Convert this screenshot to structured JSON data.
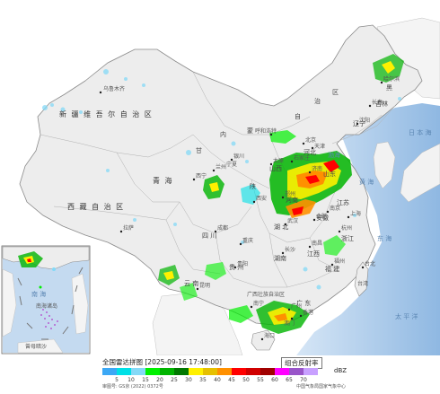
{
  "map": {
    "regions": [
      {
        "key": "xinjiang",
        "text": "新 疆 维 吾 尔 自 治 区"
      },
      {
        "key": "xizang",
        "text": "西 藏 自 治 区"
      },
      {
        "key": "qinghai",
        "text": "青  海"
      },
      {
        "key": "neimenggu_1",
        "text": "内"
      },
      {
        "key": "neimenggu_2",
        "text": "蒙"
      },
      {
        "key": "neimenggu_3",
        "text": "自"
      },
      {
        "key": "neimenggu_4",
        "text": "治"
      },
      {
        "key": "neimenggu_5",
        "text": "区"
      },
      {
        "key": "gansu",
        "text": "甘"
      },
      {
        "key": "heilongjiang",
        "text": "黑"
      },
      {
        "key": "jilin",
        "text": "吉林"
      },
      {
        "key": "liaoning",
        "text": "辽宁"
      },
      {
        "key": "shaanxi",
        "text": "陕"
      },
      {
        "key": "sichuan",
        "text": "四  川"
      },
      {
        "key": "hubei",
        "text": "湖  北"
      },
      {
        "key": "guizhou",
        "text": "贵  州"
      },
      {
        "key": "yunnan",
        "text": "云  南"
      },
      {
        "key": "guangxi",
        "text": "广西壮族自治区"
      },
      {
        "key": "guangdong",
        "text": "广 东"
      },
      {
        "key": "jiangxi",
        "text": "江西"
      },
      {
        "key": "zhejiang",
        "text": "浙江"
      },
      {
        "key": "fujian",
        "text": "福 建"
      },
      {
        "key": "taiwan",
        "text": "台湾"
      },
      {
        "key": "anhui",
        "text": "安徽"
      },
      {
        "key": "jiangsu",
        "text": "江苏"
      },
      {
        "key": "henan",
        "text": "河南"
      },
      {
        "key": "hebei",
        "text": "河北"
      },
      {
        "key": "shanxi",
        "text": "山西"
      },
      {
        "key": "shandong",
        "text": "山东"
      },
      {
        "key": "ningxia",
        "text": "宁夏"
      },
      {
        "key": "hunan",
        "text": "湖南"
      }
    ],
    "cities": [
      {
        "key": "urumqi",
        "text": "乌鲁木齐"
      },
      {
        "key": "xining",
        "text": "西宁"
      },
      {
        "key": "lanzhou",
        "text": "兰州"
      },
      {
        "key": "lhasa",
        "text": "拉萨"
      },
      {
        "key": "chengdu",
        "text": "成都"
      },
      {
        "key": "chongqing",
        "text": "重庆"
      },
      {
        "key": "guiyang",
        "text": "贵阳"
      },
      {
        "key": "kunming",
        "text": "昆明"
      },
      {
        "key": "nanning",
        "text": "南宁"
      },
      {
        "key": "guangzhou",
        "text": "广州"
      },
      {
        "key": "haikou",
        "text": "海口"
      },
      {
        "key": "changsha",
        "text": "长沙"
      },
      {
        "key": "wuhan",
        "text": "武汉"
      },
      {
        "key": "zhengzhou",
        "text": "郑州"
      },
      {
        "key": "xian",
        "text": "西安"
      },
      {
        "key": "taiyuan",
        "text": "太原"
      },
      {
        "key": "beijing",
        "text": "北京"
      },
      {
        "key": "tianjin",
        "text": "天津"
      },
      {
        "key": "shijiazhuang",
        "text": "石家庄"
      },
      {
        "key": "jinan",
        "text": "济南"
      },
      {
        "key": "nanjing",
        "text": "南京"
      },
      {
        "key": "shanghai",
        "text": "上海"
      },
      {
        "key": "hangzhou",
        "text": "杭州"
      },
      {
        "key": "fuzhou",
        "text": "福州"
      },
      {
        "key": "taipei",
        "text": "台北"
      },
      {
        "key": "nanchang",
        "text": "南昌"
      },
      {
        "key": "hefei",
        "text": "合肥"
      },
      {
        "key": "shenyang",
        "text": "沈阳"
      },
      {
        "key": "changchun",
        "text": "长春"
      },
      {
        "key": "harbin",
        "text": "哈尔滨"
      },
      {
        "key": "hohhot",
        "text": "呼和浩特"
      },
      {
        "key": "yinchuan",
        "text": "银川"
      },
      {
        "key": "hongkong",
        "text": "香港"
      },
      {
        "key": "macau",
        "text": "澳门"
      }
    ],
    "seas": [
      {
        "key": "bohai",
        "text": "渤海"
      },
      {
        "key": "huanghai",
        "text": "黄 海"
      },
      {
        "key": "donghai",
        "text": "东 海"
      },
      {
        "key": "pacific",
        "text": "太 平 洋"
      },
      {
        "key": "japan_sea",
        "text": "日 本 海"
      },
      {
        "key": "nanhai_inset",
        "text": "南 海"
      }
    ],
    "inset_labels": [
      {
        "key": "nanhai_islands",
        "text": "南海诸岛"
      },
      {
        "key": "zengmu",
        "text": "曾母暗沙"
      }
    ]
  },
  "legend": {
    "title": "全国雷达拼图 [2025-09-16 17:48:00]",
    "product": "组合反射率",
    "unit": "dBZ",
    "ticks": [
      "5",
      "10",
      "15",
      "20",
      "25",
      "30",
      "35",
      "40",
      "45",
      "50",
      "55",
      "60",
      "65",
      "70"
    ],
    "colors": [
      "#3ca8f5",
      "#00e0e6",
      "#84d9f7",
      "#00f000",
      "#00b400",
      "#007800",
      "#fff000",
      "#e6c000",
      "#ff9000",
      "#ff0000",
      "#d00000",
      "#a00000",
      "#ff00ff",
      "#9955c9",
      "#c8a0ff"
    ],
    "approval": "审图号: GS京 (2022) 0372号",
    "credit": "中国气象局国家气象中心"
  }
}
